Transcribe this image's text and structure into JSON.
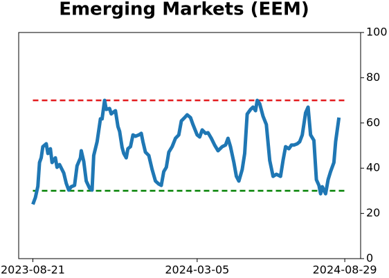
{
  "chart_data": {
    "type": "line",
    "title": "Emerging Markets (EEM)",
    "x": [
      "2023-08-21",
      "2023-08-24",
      "2023-08-27",
      "2023-08-29",
      "2023-08-31",
      "2023-09-02",
      "2023-09-06",
      "2023-09-08",
      "2023-09-11",
      "2023-09-13",
      "2023-09-17",
      "2023-09-19",
      "2023-09-22",
      "2023-09-27",
      "2023-09-30",
      "2023-10-03",
      "2023-10-06",
      "2023-10-10",
      "2023-10-13",
      "2023-10-17",
      "2023-10-18",
      "2023-10-21",
      "2023-10-24",
      "2023-10-28",
      "2023-10-31",
      "2023-11-02",
      "2023-11-06",
      "2023-11-10",
      "2023-11-12",
      "2023-11-15",
      "2023-11-17",
      "2023-11-21",
      "2023-11-23",
      "2023-11-26",
      "2023-11-28",
      "2023-12-01",
      "2023-12-03",
      "2023-12-06",
      "2023-12-08",
      "2023-12-11",
      "2023-12-13",
      "2023-12-16",
      "2023-12-19",
      "2023-12-22",
      "2023-12-26",
      "2023-12-29",
      "2023-12-31",
      "2024-01-03",
      "2024-01-07",
      "2024-01-11",
      "2024-01-15",
      "2024-01-19",
      "2024-01-22",
      "2024-01-25",
      "2024-01-28",
      "2024-01-31",
      "2024-02-04",
      "2024-02-08",
      "2024-02-12",
      "2024-02-15",
      "2024-02-19",
      "2024-02-22",
      "2024-02-26",
      "2024-02-29",
      "2024-03-05",
      "2024-03-08",
      "2024-03-11",
      "2024-03-15",
      "2024-03-18",
      "2024-03-22",
      "2024-03-26",
      "2024-03-30",
      "2024-04-04",
      "2024-04-08",
      "2024-04-11",
      "2024-04-14",
      "2024-04-18",
      "2024-04-21",
      "2024-04-24",
      "2024-04-28",
      "2024-05-01",
      "2024-05-04",
      "2024-05-08",
      "2024-05-11",
      "2024-05-14",
      "2024-05-16",
      "2024-05-19",
      "2024-05-23",
      "2024-05-27",
      "2024-05-31",
      "2024-06-04",
      "2024-06-08",
      "2024-06-13",
      "2024-06-16",
      "2024-06-19",
      "2024-06-23",
      "2024-06-26",
      "2024-06-29",
      "2024-07-03",
      "2024-07-06",
      "2024-07-09",
      "2024-07-13",
      "2024-07-16",
      "2024-07-19",
      "2024-07-23",
      "2024-07-26",
      "2024-07-29",
      "2024-07-31",
      "2024-08-02",
      "2024-08-06",
      "2024-08-09",
      "2024-08-12",
      "2024-08-16",
      "2024-08-18",
      "2024-08-22"
    ],
    "series": [
      {
        "color": "#1f77b4",
        "values": [
          24,
          27,
          32,
          42.5,
          44.6,
          49.5,
          50.8,
          46.5,
          48.6,
          42.5,
          44.6,
          40.4,
          41.6,
          37.9,
          33.3,
          30.3,
          31.8,
          32.4,
          41,
          44.6,
          47.7,
          43,
          34.3,
          31.2,
          30.3,
          45.6,
          51.7,
          61.8,
          61.8,
          70,
          66,
          66.4,
          64,
          64.9,
          65.4,
          58.4,
          56.3,
          49.2,
          46.5,
          44.6,
          48.6,
          49.5,
          54.7,
          54.1,
          54.7,
          55.4,
          51.7,
          47.1,
          45.6,
          39.4,
          34.3,
          33,
          32.4,
          38.5,
          40.4,
          47.1,
          49.5,
          53.2,
          54.7,
          60.9,
          62.4,
          63.6,
          62.4,
          59.3,
          54.7,
          53.8,
          56.9,
          55.4,
          55.7,
          53.2,
          50.2,
          47.7,
          49.5,
          50.2,
          53.2,
          49.5,
          42.5,
          36.4,
          34.3,
          39.4,
          46.5,
          63.9,
          66,
          67,
          65.4,
          70,
          68.5,
          63,
          59.3,
          43.4,
          36.4,
          37.3,
          36.4,
          43.4,
          49.5,
          48.6,
          50.2,
          50.2,
          50.8,
          51.7,
          54.7,
          64.5,
          67,
          54.7,
          52.3,
          34.9,
          32.4,
          28.7,
          31.8,
          28.7,
          34.9,
          38.5,
          42.5,
          51.7,
          62.4
        ]
      }
    ],
    "hlines": [
      {
        "value": 70,
        "color": "#e31a1c"
      },
      {
        "value": 30,
        "color": "#008000"
      }
    ],
    "xlim": [
      "2023-08-04",
      "2024-09-17"
    ],
    "xticks": [
      "2023-08-21",
      "2024-03-05",
      "2024-08-29"
    ],
    "ylim": [
      0,
      100
    ],
    "yticks": [
      0,
      20,
      40,
      60,
      80,
      100
    ]
  }
}
